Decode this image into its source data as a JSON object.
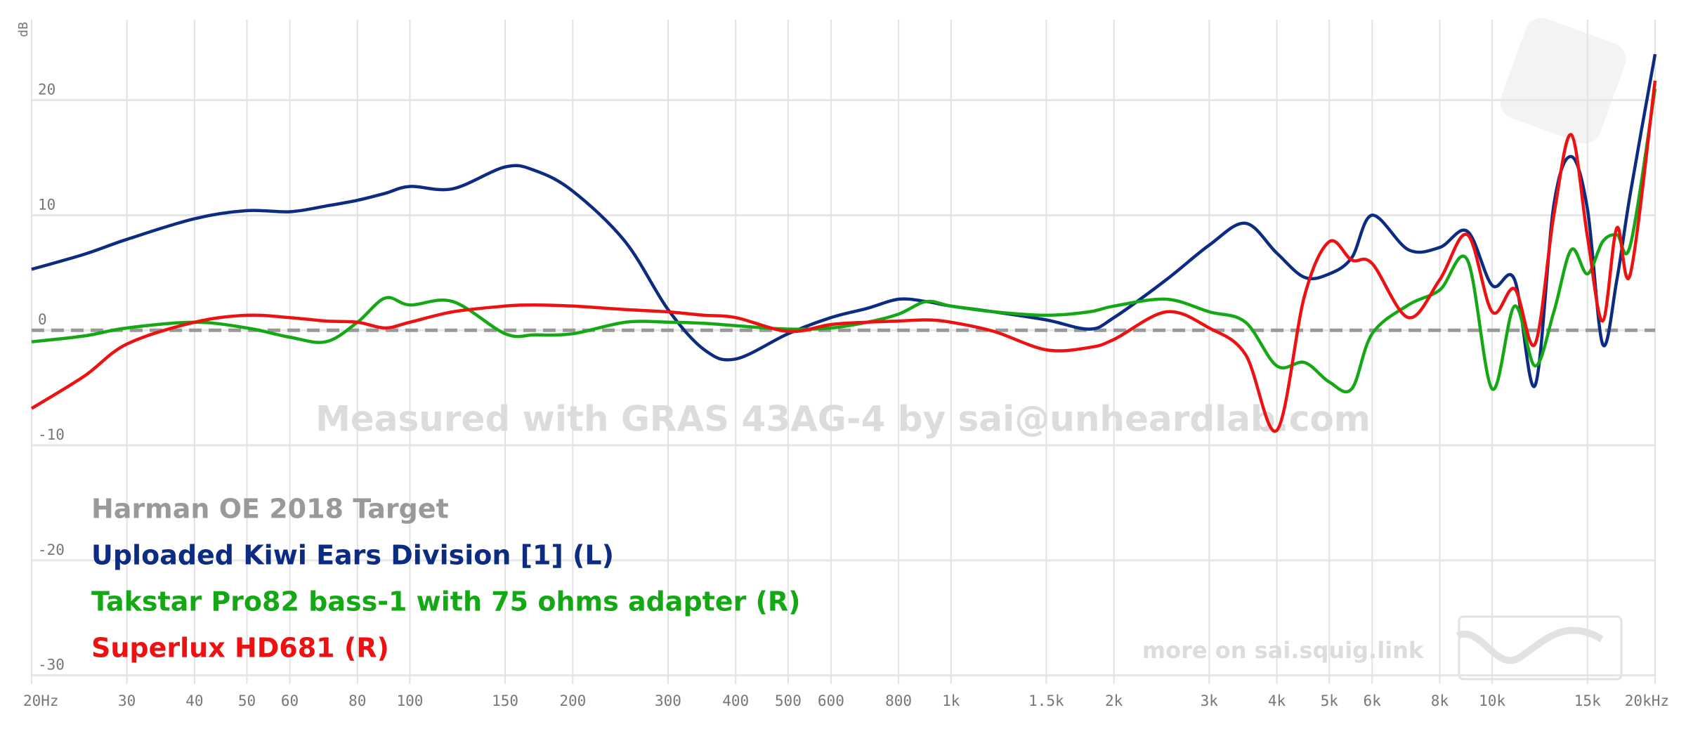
{
  "chart_data": {
    "type": "line",
    "y_label": "dB",
    "annotations": [
      "Measured with GRAS 43AG-4 by sai@unheardlab.com",
      "more on sai.squig.link"
    ],
    "log_x": true,
    "grid": true,
    "xlim": [
      20,
      20000
    ],
    "ylim": [
      -31,
      27
    ],
    "xticks": [
      {
        "value": 20,
        "label": "20Hz"
      },
      30,
      40,
      50,
      60,
      80,
      100,
      150,
      200,
      300,
      400,
      500,
      600,
      800,
      {
        "value": 1000,
        "label": "1k"
      },
      {
        "value": 1500,
        "label": "1.5k"
      },
      {
        "value": 2000,
        "label": "2k"
      },
      {
        "value": 3000,
        "label": "3k"
      },
      {
        "value": 4000,
        "label": "4k"
      },
      {
        "value": 5000,
        "label": "5k"
      },
      {
        "value": 6000,
        "label": "6k"
      },
      {
        "value": 8000,
        "label": "8k"
      },
      {
        "value": 10000,
        "label": "10k"
      },
      {
        "value": 15000,
        "label": "15k"
      },
      {
        "value": 20000,
        "label": "20kHz"
      }
    ],
    "yticks": [
      -30,
      -20,
      -10,
      0,
      10,
      20
    ],
    "x": [
      20,
      25,
      30,
      40,
      50,
      60,
      70,
      80,
      90,
      100,
      120,
      150,
      170,
      200,
      250,
      300,
      350,
      400,
      500,
      600,
      700,
      800,
      900,
      1000,
      1200,
      1500,
      1800,
      2000,
      2500,
      3000,
      3500,
      4000,
      4500,
      5000,
      5500,
      6000,
      7000,
      8000,
      9000,
      10000,
      11000,
      12000,
      13000,
      14000,
      15000,
      16000,
      17000,
      18000,
      20000
    ],
    "series": [
      {
        "name": "Harman OE 2018 Target",
        "color": "#999999",
        "dashed": true,
        "values": [
          0,
          0,
          0,
          0,
          0,
          0,
          0,
          0,
          0,
          0,
          0,
          0,
          0,
          0,
          0,
          0,
          0,
          0,
          0,
          0,
          0,
          0,
          0,
          0,
          0,
          0,
          0,
          0,
          0,
          0,
          0,
          0,
          0,
          0,
          0,
          0,
          0,
          0,
          0,
          0,
          0,
          0,
          0,
          0,
          0,
          0,
          0,
          0,
          0
        ]
      },
      {
        "name": "Uploaded Kiwi Ears Division [1] (L)",
        "color": "#0c2c82",
        "values": [
          5.3,
          6.6,
          7.9,
          9.7,
          10.4,
          10.3,
          10.8,
          11.3,
          11.9,
          12.5,
          12.3,
          14.2,
          13.9,
          12.1,
          7.7,
          1.8,
          -1.7,
          -2.5,
          -0.3,
          1.1,
          1.9,
          2.7,
          2.5,
          2.1,
          1.6,
          0.9,
          0.1,
          1.1,
          4.4,
          7.4,
          9.3,
          6.7,
          4.6,
          4.9,
          6.3,
          10,
          7,
          7.2,
          8.6,
          3.9,
          4.4,
          -4.8,
          10.9,
          15.1,
          10.5,
          -1.2,
          4.4,
          11.9,
          24
        ]
      },
      {
        "name": "Takstar Pro82 bass-1 with 75 ohms adapter (R)",
        "color": "#14a814",
        "values": [
          -1,
          -0.5,
          0.2,
          0.7,
          0.2,
          -0.6,
          -1,
          0.7,
          2.8,
          2.2,
          2.5,
          -0.3,
          -0.4,
          -0.3,
          0.7,
          0.7,
          0.6,
          0.4,
          0.1,
          0.2,
          0.7,
          1.4,
          2.5,
          2.1,
          1.6,
          1.3,
          1.6,
          2.1,
          2.7,
          1.6,
          0.7,
          -3.1,
          -2.8,
          -4.5,
          -5.1,
          -0.3,
          2.2,
          3.5,
          6.1,
          -5.1,
          2.1,
          -3.1,
          1.6,
          7,
          4.9,
          7.7,
          8.3,
          7.4,
          21
        ]
      },
      {
        "name": "Superlux HD681 (R)",
        "color": "#ee1111",
        "values": [
          -6.8,
          -4,
          -1.2,
          0.7,
          1.3,
          1.1,
          0.8,
          0.7,
          0.2,
          0.7,
          1.6,
          2.1,
          2.2,
          2.1,
          1.8,
          1.6,
          1.3,
          1.1,
          -0.1,
          0.5,
          0.7,
          0.8,
          0.9,
          0.7,
          -0.1,
          -1.7,
          -1.5,
          -0.8,
          1.6,
          0.2,
          -2.1,
          -8.7,
          3,
          7.7,
          6.1,
          5.8,
          1.1,
          4.4,
          8.3,
          1.6,
          3.6,
          -1.2,
          10,
          17,
          8.1,
          0.8,
          8.9,
          4.9,
          21.7
        ]
      }
    ]
  }
}
